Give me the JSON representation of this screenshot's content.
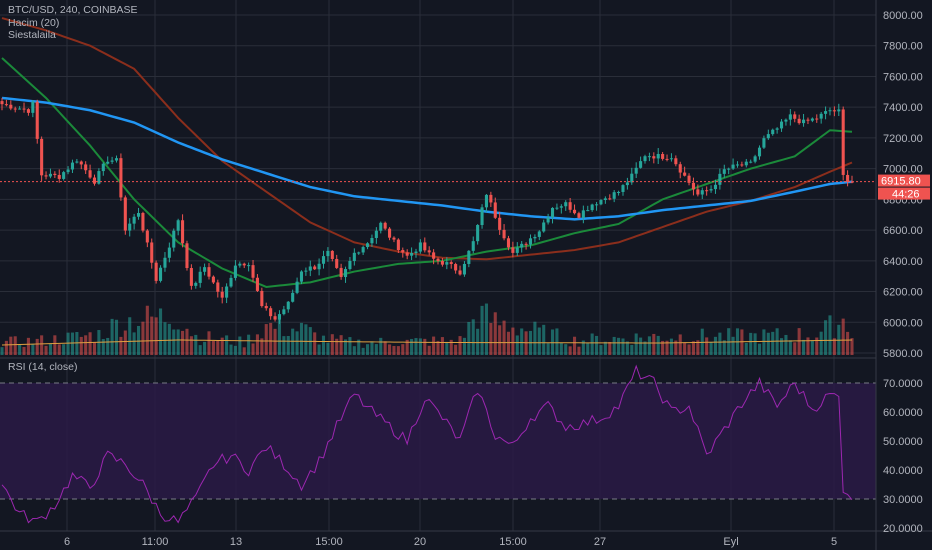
{
  "header": {
    "symbol": "BTC/USD, 240, COINBASE",
    "volume_indicator": "Hacim (20)",
    "third_indicator": "Siestalaila",
    "rsi_indicator": "RSI (14, close)"
  },
  "price_badges": {
    "last_price": "6915.80",
    "countdown": "44:26"
  },
  "colors": {
    "background": "#131722",
    "grid": "#2a2e39",
    "up": "#26a69a",
    "down": "#ef5350",
    "ma_fast": "#1b8a3a",
    "ma_mid": "#8b2e1c",
    "ma_slow": "#2196f3",
    "volume_ma": "#e0a040",
    "rsi_line": "#9c27b0",
    "rsi_band": "#2a1a45"
  },
  "chart_data": [
    {
      "type": "candlestick",
      "name": "price",
      "yticks": [
        "8000.00",
        "7800.00",
        "7600.00",
        "7400.00",
        "7200.00",
        "7000.00",
        "6800.00",
        "6600.00",
        "6400.00",
        "6200.00",
        "6000.00",
        "5800.00"
      ],
      "ylim": [
        5800,
        8080
      ],
      "xticks": [
        "6",
        "11:00",
        "13",
        "15:00",
        "20",
        "15:00",
        "27",
        "Eyl",
        "5"
      ],
      "anchors": [
        [
          0,
          7420
        ],
        [
          6,
          7380
        ],
        [
          7,
          7420
        ],
        [
          9,
          6960
        ],
        [
          13,
          6950
        ],
        [
          17,
          7060
        ],
        [
          21,
          6920
        ],
        [
          24,
          7060
        ],
        [
          26,
          7050
        ],
        [
          28,
          6600
        ],
        [
          31,
          6720
        ],
        [
          35,
          6280
        ],
        [
          38,
          6500
        ],
        [
          40,
          6670
        ],
        [
          43,
          6220
        ],
        [
          46,
          6360
        ],
        [
          50,
          6150
        ],
        [
          53,
          6380
        ],
        [
          56,
          6390
        ],
        [
          59,
          6100
        ],
        [
          62,
          6020
        ],
        [
          65,
          6120
        ],
        [
          68,
          6340
        ],
        [
          71,
          6360
        ],
        [
          74,
          6450
        ],
        [
          77,
          6280
        ],
        [
          80,
          6450
        ],
        [
          83,
          6520
        ],
        [
          86,
          6640
        ],
        [
          89,
          6520
        ],
        [
          92,
          6430
        ],
        [
          95,
          6500
        ],
        [
          98,
          6410
        ],
        [
          101,
          6380
        ],
        [
          104,
          6330
        ],
        [
          107,
          6520
        ],
        [
          110,
          6840
        ],
        [
          113,
          6620
        ],
        [
          116,
          6450
        ],
        [
          119,
          6520
        ],
        [
          122,
          6600
        ],
        [
          125,
          6750
        ],
        [
          128,
          6770
        ],
        [
          131,
          6700
        ],
        [
          134,
          6770
        ],
        [
          137,
          6810
        ],
        [
          140,
          6850
        ],
        [
          143,
          6950
        ],
        [
          146,
          7090
        ],
        [
          149,
          7080
        ],
        [
          152,
          7080
        ],
        [
          155,
          6950
        ],
        [
          158,
          6830
        ],
        [
          161,
          6870
        ],
        [
          164,
          6990
        ],
        [
          167,
          7020
        ],
        [
          170,
          7030
        ],
        [
          173,
          7190
        ],
        [
          176,
          7260
        ],
        [
          179,
          7340
        ],
        [
          182,
          7300
        ],
        [
          185,
          7330
        ],
        [
          188,
          7380
        ],
        [
          190,
          7370
        ],
        [
          191,
          6950
        ],
        [
          193,
          6915
        ]
      ],
      "ma_fast": [
        [
          0,
          7720
        ],
        [
          10,
          7460
        ],
        [
          20,
          7150
        ],
        [
          30,
          6800
        ],
        [
          40,
          6520
        ],
        [
          50,
          6350
        ],
        [
          60,
          6230
        ],
        [
          70,
          6260
        ],
        [
          80,
          6330
        ],
        [
          90,
          6380
        ],
        [
          100,
          6400
        ],
        [
          110,
          6460
        ],
        [
          120,
          6500
        ],
        [
          130,
          6580
        ],
        [
          140,
          6640
        ],
        [
          150,
          6800
        ],
        [
          160,
          6900
        ],
        [
          170,
          7000
        ],
        [
          180,
          7080
        ],
        [
          188,
          7250
        ],
        [
          193,
          7240
        ]
      ],
      "ma_mid": [
        [
          0,
          7980
        ],
        [
          10,
          7900
        ],
        [
          20,
          7800
        ],
        [
          30,
          7650
        ],
        [
          40,
          7330
        ],
        [
          50,
          7050
        ],
        [
          60,
          6850
        ],
        [
          70,
          6650
        ],
        [
          80,
          6520
        ],
        [
          90,
          6460
        ],
        [
          100,
          6420
        ],
        [
          110,
          6410
        ],
        [
          120,
          6440
        ],
        [
          130,
          6470
        ],
        [
          140,
          6520
        ],
        [
          150,
          6620
        ],
        [
          160,
          6720
        ],
        [
          170,
          6790
        ],
        [
          180,
          6880
        ],
        [
          188,
          6980
        ],
        [
          193,
          7040
        ]
      ],
      "ma_slow": [
        [
          0,
          7460
        ],
        [
          10,
          7430
        ],
        [
          20,
          7380
        ],
        [
          30,
          7300
        ],
        [
          40,
          7170
        ],
        [
          50,
          7060
        ],
        [
          60,
          6970
        ],
        [
          70,
          6880
        ],
        [
          80,
          6820
        ],
        [
          90,
          6790
        ],
        [
          100,
          6760
        ],
        [
          110,
          6720
        ],
        [
          120,
          6690
        ],
        [
          130,
          6670
        ],
        [
          140,
          6690
        ],
        [
          150,
          6730
        ],
        [
          160,
          6760
        ],
        [
          170,
          6790
        ],
        [
          180,
          6850
        ],
        [
          188,
          6900
        ],
        [
          193,
          6915
        ]
      ]
    },
    {
      "type": "bar",
      "name": "volume",
      "ylim": [
        0,
        1
      ],
      "anchors": [
        [
          0,
          0.3
        ],
        [
          10,
          0.35
        ],
        [
          22,
          0.5
        ],
        [
          27,
          0.8
        ],
        [
          35,
          0.9
        ],
        [
          40,
          0.95
        ],
        [
          44,
          0.45
        ],
        [
          55,
          0.3
        ],
        [
          60,
          0.7
        ],
        [
          69,
          0.6
        ],
        [
          72,
          0.4
        ],
        [
          80,
          0.3
        ],
        [
          104,
          0.35
        ],
        [
          108,
          1.0
        ],
        [
          112,
          0.8
        ],
        [
          130,
          0.35
        ],
        [
          150,
          0.45
        ],
        [
          170,
          0.45
        ],
        [
          185,
          0.5
        ],
        [
          191,
          0.85
        ],
        [
          193,
          0.6
        ]
      ],
      "ma": [
        [
          0,
          0.2
        ],
        [
          40,
          0.3
        ],
        [
          60,
          0.28
        ],
        [
          100,
          0.25
        ],
        [
          150,
          0.24
        ],
        [
          193,
          0.3
        ]
      ]
    },
    {
      "type": "line",
      "name": "rsi",
      "yticks": [
        "70.0000",
        "60.0000",
        "50.0000",
        "40.0000",
        "30.0000",
        "20.0000"
      ],
      "ylim": [
        17,
        78
      ],
      "bands": [
        30,
        70
      ],
      "values": [
        [
          0,
          35
        ],
        [
          4,
          25
        ],
        [
          8,
          22
        ],
        [
          12,
          28
        ],
        [
          16,
          38
        ],
        [
          20,
          34
        ],
        [
          24,
          45
        ],
        [
          28,
          42
        ],
        [
          32,
          35
        ],
        [
          36,
          25
        ],
        [
          40,
          22
        ],
        [
          44,
          30
        ],
        [
          48,
          42
        ],
        [
          52,
          45
        ],
        [
          56,
          40
        ],
        [
          60,
          48
        ],
        [
          64,
          42
        ],
        [
          68,
          35
        ],
        [
          72,
          43
        ],
        [
          76,
          55
        ],
        [
          80,
          66
        ],
        [
          84,
          60
        ],
        [
          88,
          55
        ],
        [
          92,
          50
        ],
        [
          96,
          65
        ],
        [
          100,
          58
        ],
        [
          104,
          50
        ],
        [
          108,
          68
        ],
        [
          112,
          52
        ],
        [
          116,
          48
        ],
        [
          120,
          58
        ],
        [
          124,
          62
        ],
        [
          128,
          55
        ],
        [
          132,
          56
        ],
        [
          136,
          58
        ],
        [
          140,
          62
        ],
        [
          144,
          74
        ],
        [
          148,
          70
        ],
        [
          152,
          60
        ],
        [
          156,
          62
        ],
        [
          160,
          45
        ],
        [
          164,
          54
        ],
        [
          168,
          63
        ],
        [
          172,
          70
        ],
        [
          176,
          62
        ],
        [
          180,
          70
        ],
        [
          184,
          61
        ],
        [
          188,
          66
        ],
        [
          190,
          65
        ],
        [
          191,
          34
        ],
        [
          193,
          31
        ]
      ]
    }
  ]
}
